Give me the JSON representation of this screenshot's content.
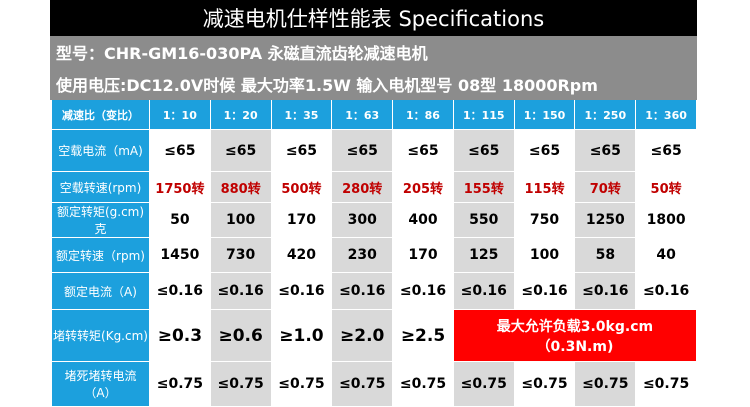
{
  "header": {
    "title": "减速电机仕样性能表 Specifications",
    "line1": "型号：CHR-GM16-030PA   永磁直流齿轮减速电机",
    "line2": "使用电压:DC12.0V时候 最大功率1.5W  输入电机型号 08型 18000Rpm"
  },
  "table": {
    "header_row": [
      "减速比（变比）",
      "1：10",
      "1：20",
      "1：35",
      "1：63",
      "1：86",
      "1：115",
      "1：150",
      "1：250",
      "1：360"
    ],
    "rows": [
      [
        "空载电流（mA)",
        "≤65",
        "≤65",
        "≤65",
        "≤65",
        "≤65",
        "≤65",
        "≤65",
        "≤65",
        "≤65"
      ],
      [
        "空载转速(rpm)",
        "1750转",
        "880转",
        "500转",
        "280转",
        "205转",
        "155转",
        "115转",
        "70转",
        "50转"
      ],
      [
        "额定转矩(g.cm)克",
        "50",
        "100",
        "170",
        "300",
        "400",
        "550",
        "750",
        "1250",
        "1800"
      ],
      [
        "额定转速（rpm)",
        "1450",
        "730",
        "420",
        "230",
        "170",
        "125",
        "100",
        "58",
        "40"
      ],
      [
        "额定电流（A)",
        "≤0.16",
        "≤0.16",
        "≤0.16",
        "≤0.16",
        "≤0.16",
        "≤0.16",
        "≤0.16",
        "≤0.16",
        "≤0.16"
      ],
      [
        "堵转转矩(Kg.cm)",
        "≥0.3",
        "≥0.6",
        "≥1.0",
        "≥2.0",
        "≥2.5"
      ],
      [
        "堵死堵转电流（A）",
        "≤0.75",
        "≤0.75",
        "≤0.75",
        "≤0.75",
        "≤0.75",
        "≤0.75",
        "≤0.75",
        "≤0.75",
        "≤0.75"
      ]
    ],
    "stall_note": [
      "最大允许负载3.0kg.cm",
      "（0.3N.m)"
    ]
  }
}
